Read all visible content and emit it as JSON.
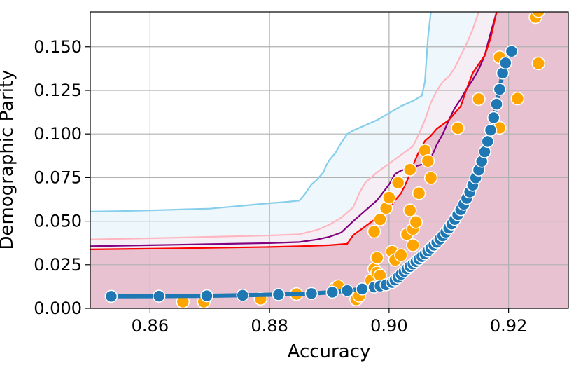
{
  "chart_data": {
    "type": "scatter",
    "title": "",
    "xlabel": "Accuracy",
    "ylabel": "Demographic Parity",
    "xlim": [
      0.85,
      0.93
    ],
    "ylim": [
      0.0,
      0.17
    ],
    "xticks": [
      0.86,
      0.88,
      0.9,
      0.92
    ],
    "xtick_labels": [
      "0.86",
      "0.88",
      "0.90",
      "0.92"
    ],
    "yticks": [
      0.0,
      0.025,
      0.05,
      0.075,
      0.1,
      0.125,
      0.15
    ],
    "ytick_labels": [
      "0.000",
      "0.025",
      "0.050",
      "0.075",
      "0.100",
      "0.125",
      "0.150"
    ],
    "grid": true,
    "legend": "none",
    "colors": {
      "blue_series": "#1f77b4",
      "orange_points": "#ffa500",
      "skyblue_line": "#87ceeb",
      "pink_line": "#ffb6c1",
      "purple_line": "#800080",
      "red_line": "#ff0000",
      "fill_pink": "#e8c2d0",
      "fill_light": "#f6eef5",
      "fill_skyblue": "#eef7fb"
    },
    "boundary_lines": [
      {
        "color": "skyblue",
        "points": [
          [
            0.85,
            0.0555
          ],
          [
            0.855,
            0.0558
          ],
          [
            0.86,
            0.0562
          ],
          [
            0.865,
            0.0567
          ],
          [
            0.87,
            0.0572
          ],
          [
            0.872,
            0.0578
          ],
          [
            0.875,
            0.0587
          ],
          [
            0.878,
            0.0597
          ],
          [
            0.88,
            0.0603
          ],
          [
            0.883,
            0.0611
          ],
          [
            0.885,
            0.0618
          ],
          [
            0.886,
            0.066
          ],
          [
            0.887,
            0.071
          ],
          [
            0.888,
            0.074
          ],
          [
            0.889,
            0.078
          ],
          [
            0.8895,
            0.082
          ],
          [
            0.89,
            0.085
          ],
          [
            0.891,
            0.089
          ],
          [
            0.892,
            0.095
          ],
          [
            0.893,
            0.1
          ],
          [
            0.894,
            0.102
          ],
          [
            0.896,
            0.105
          ],
          [
            0.898,
            0.108
          ],
          [
            0.9,
            0.112
          ],
          [
            0.902,
            0.116
          ],
          [
            0.904,
            0.119
          ],
          [
            0.9055,
            0.122
          ],
          [
            0.906,
            0.13
          ],
          [
            0.9065,
            0.155
          ],
          [
            0.907,
            0.17
          ]
        ]
      },
      {
        "color": "pink",
        "points": [
          [
            0.85,
            0.0395
          ],
          [
            0.86,
            0.0402
          ],
          [
            0.87,
            0.041
          ],
          [
            0.88,
            0.0418
          ],
          [
            0.885,
            0.0425
          ],
          [
            0.888,
            0.045
          ],
          [
            0.89,
            0.048
          ],
          [
            0.892,
            0.052
          ],
          [
            0.894,
            0.058
          ],
          [
            0.895,
            0.066
          ],
          [
            0.896,
            0.072
          ],
          [
            0.898,
            0.078
          ],
          [
            0.9,
            0.083
          ],
          [
            0.902,
            0.088
          ],
          [
            0.904,
            0.093
          ],
          [
            0.905,
            0.1
          ],
          [
            0.906,
            0.108
          ],
          [
            0.907,
            0.118
          ],
          [
            0.908,
            0.125
          ],
          [
            0.909,
            0.13
          ],
          [
            0.91,
            0.133
          ],
          [
            0.911,
            0.138
          ],
          [
            0.912,
            0.145
          ],
          [
            0.913,
            0.152
          ],
          [
            0.914,
            0.16
          ],
          [
            0.915,
            0.17
          ]
        ]
      },
      {
        "color": "purple",
        "points": [
          [
            0.85,
            0.0356
          ],
          [
            0.86,
            0.0362
          ],
          [
            0.87,
            0.0368
          ],
          [
            0.88,
            0.0374
          ],
          [
            0.885,
            0.038
          ],
          [
            0.888,
            0.0395
          ],
          [
            0.89,
            0.041
          ],
          [
            0.892,
            0.0435
          ],
          [
            0.894,
            0.05
          ],
          [
            0.896,
            0.056
          ],
          [
            0.898,
            0.062
          ],
          [
            0.9,
            0.071
          ],
          [
            0.901,
            0.077
          ],
          [
            0.902,
            0.079
          ],
          [
            0.904,
            0.081
          ],
          [
            0.906,
            0.083
          ],
          [
            0.907,
            0.086
          ],
          [
            0.908,
            0.094
          ],
          [
            0.909,
            0.1
          ],
          [
            0.91,
            0.108
          ],
          [
            0.911,
            0.115
          ],
          [
            0.912,
            0.12
          ],
          [
            0.913,
            0.126
          ],
          [
            0.914,
            0.131
          ],
          [
            0.915,
            0.137
          ],
          [
            0.916,
            0.145
          ],
          [
            0.917,
            0.158
          ],
          [
            0.918,
            0.17
          ]
        ]
      },
      {
        "color": "red",
        "points": [
          [
            0.85,
            0.0338
          ],
          [
            0.86,
            0.0342
          ],
          [
            0.87,
            0.0347
          ],
          [
            0.88,
            0.0352
          ],
          [
            0.885,
            0.0356
          ],
          [
            0.89,
            0.0362
          ],
          [
            0.893,
            0.037
          ],
          [
            0.894,
            0.042
          ],
          [
            0.896,
            0.047
          ],
          [
            0.898,
            0.052
          ],
          [
            0.9,
            0.058
          ],
          [
            0.902,
            0.066
          ],
          [
            0.903,
            0.073
          ],
          [
            0.904,
            0.082
          ],
          [
            0.905,
            0.09
          ],
          [
            0.906,
            0.096
          ],
          [
            0.907,
            0.099
          ],
          [
            0.908,
            0.103
          ],
          [
            0.91,
            0.108
          ],
          [
            0.912,
            0.116
          ],
          [
            0.913,
            0.126
          ],
          [
            0.914,
            0.135
          ],
          [
            0.915,
            0.14
          ],
          [
            0.916,
            0.145
          ],
          [
            0.917,
            0.155
          ],
          [
            0.918,
            0.17
          ]
        ]
      }
    ],
    "blue_series": {
      "points": [
        [
          0.8535,
          0.0069
        ],
        [
          0.8615,
          0.007
        ],
        [
          0.8695,
          0.0072
        ],
        [
          0.8755,
          0.0075
        ],
        [
          0.8815,
          0.0079
        ],
        [
          0.887,
          0.0085
        ],
        [
          0.8905,
          0.0093
        ],
        [
          0.893,
          0.0102
        ],
        [
          0.8955,
          0.0111
        ],
        [
          0.8975,
          0.0122
        ],
        [
          0.8985,
          0.0128
        ],
        [
          0.8995,
          0.0135
        ],
        [
          0.9005,
          0.0148
        ],
        [
          0.901,
          0.0162
        ],
        [
          0.9015,
          0.0178
        ],
        [
          0.902,
          0.0195
        ],
        [
          0.9025,
          0.0211
        ],
        [
          0.903,
          0.0226
        ],
        [
          0.9035,
          0.024
        ],
        [
          0.904,
          0.0254
        ],
        [
          0.9045,
          0.0268
        ],
        [
          0.905,
          0.0282
        ],
        [
          0.9055,
          0.0297
        ],
        [
          0.906,
          0.0312
        ],
        [
          0.9065,
          0.0328
        ],
        [
          0.907,
          0.0345
        ],
        [
          0.9075,
          0.0362
        ],
        [
          0.908,
          0.0379
        ],
        [
          0.9085,
          0.0397
        ],
        [
          0.909,
          0.0416
        ],
        [
          0.9095,
          0.0437
        ],
        [
          0.91,
          0.046
        ],
        [
          0.9105,
          0.0484
        ],
        [
          0.911,
          0.051
        ],
        [
          0.9115,
          0.0537
        ],
        [
          0.912,
          0.0566
        ],
        [
          0.9125,
          0.0597
        ],
        [
          0.913,
          0.0631
        ],
        [
          0.9135,
          0.0667
        ],
        [
          0.914,
          0.0706
        ],
        [
          0.9145,
          0.0748
        ],
        [
          0.915,
          0.0793
        ],
        [
          0.9155,
          0.0843
        ],
        [
          0.916,
          0.0898
        ],
        [
          0.9165,
          0.0957
        ],
        [
          0.917,
          0.1022
        ],
        [
          0.9175,
          0.1093
        ],
        [
          0.918,
          0.1171
        ],
        [
          0.9185,
          0.1256
        ],
        [
          0.919,
          0.1349
        ],
        [
          0.9195,
          0.1407
        ],
        [
          0.9205,
          0.1474
        ]
      ]
    },
    "orange_points": [
      [
        0.8655,
        0.0038
      ],
      [
        0.869,
        0.0038
      ],
      [
        0.8785,
        0.0055
      ],
      [
        0.8845,
        0.0082
      ],
      [
        0.891,
        0.0115
      ],
      [
        0.8915,
        0.0127
      ],
      [
        0.8945,
        0.0051
      ],
      [
        0.895,
        0.0072
      ],
      [
        0.897,
        0.016
      ],
      [
        0.8975,
        0.0225
      ],
      [
        0.8975,
        0.044
      ],
      [
        0.898,
        0.029
      ],
      [
        0.898,
        0.0205
      ],
      [
        0.8985,
        0.0188
      ],
      [
        0.8985,
        0.051
      ],
      [
        0.8995,
        0.0575
      ],
      [
        0.9,
        0.0635
      ],
      [
        0.9005,
        0.0325
      ],
      [
        0.901,
        0.0277
      ],
      [
        0.9015,
        0.072
      ],
      [
        0.902,
        0.0305
      ],
      [
        0.903,
        0.0425
      ],
      [
        0.9035,
        0.0795
      ],
      [
        0.9035,
        0.0562
      ],
      [
        0.904,
        0.0455
      ],
      [
        0.904,
        0.0362
      ],
      [
        0.9045,
        0.0495
      ],
      [
        0.905,
        0.066
      ],
      [
        0.906,
        0.0905
      ],
      [
        0.9065,
        0.0845
      ],
      [
        0.907,
        0.0748
      ],
      [
        0.9115,
        0.1033
      ],
      [
        0.915,
        0.12
      ],
      [
        0.9185,
        0.1035
      ],
      [
        0.9185,
        0.144
      ],
      [
        0.9215,
        0.1203
      ],
      [
        0.9245,
        0.167
      ],
      [
        0.925,
        0.1705
      ],
      [
        0.925,
        0.1405
      ]
    ]
  }
}
